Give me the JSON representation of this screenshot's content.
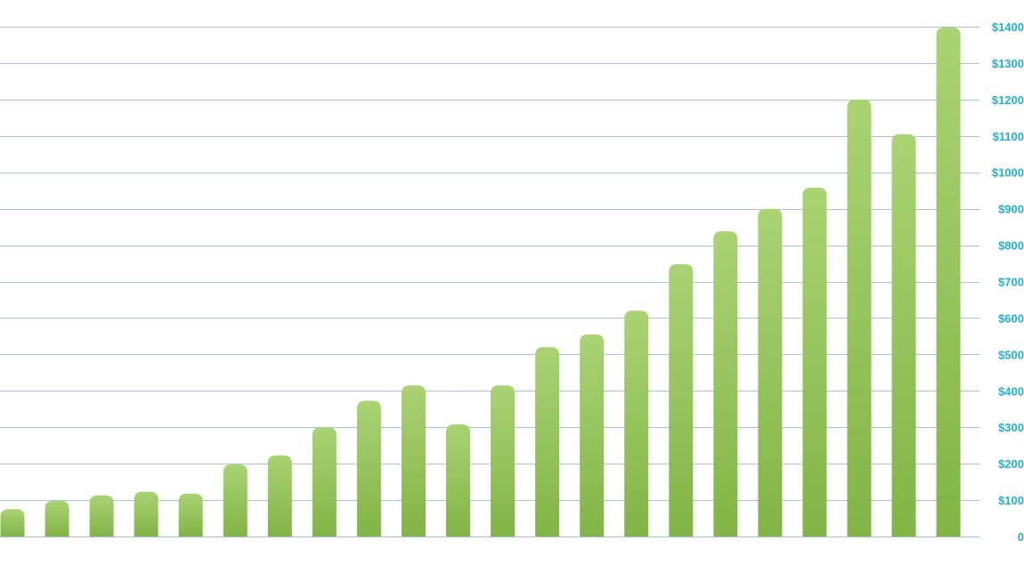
{
  "chart_data": {
    "type": "bar",
    "title": "",
    "xlabel": "",
    "ylabel": "",
    "ylim": [
      0,
      1400
    ],
    "yticks": [
      0,
      100,
      200,
      300,
      400,
      500,
      600,
      700,
      800,
      900,
      1000,
      1100,
      1200,
      1300,
      1400
    ],
    "ytick_labels": [
      "0",
      "$100",
      "$200",
      "$300",
      "$400",
      "$500",
      "$600",
      "$700",
      "$800",
      "$900",
      "$1000",
      "$1100",
      "$1200",
      "$1300",
      "$1400"
    ],
    "y_axis_position": "right",
    "grid": true,
    "legend": "none",
    "values": [
      75,
      98,
      113,
      123,
      118,
      198,
      223,
      300,
      373,
      415,
      308,
      415,
      520,
      555,
      620,
      748,
      838,
      900,
      958,
      1200,
      1105,
      1398
    ]
  },
  "colors": {
    "bar_top": "#aad374",
    "bar_bottom": "#82b446",
    "gridline": "#a9c3d4",
    "tick_label": "#1fb1d6"
  }
}
